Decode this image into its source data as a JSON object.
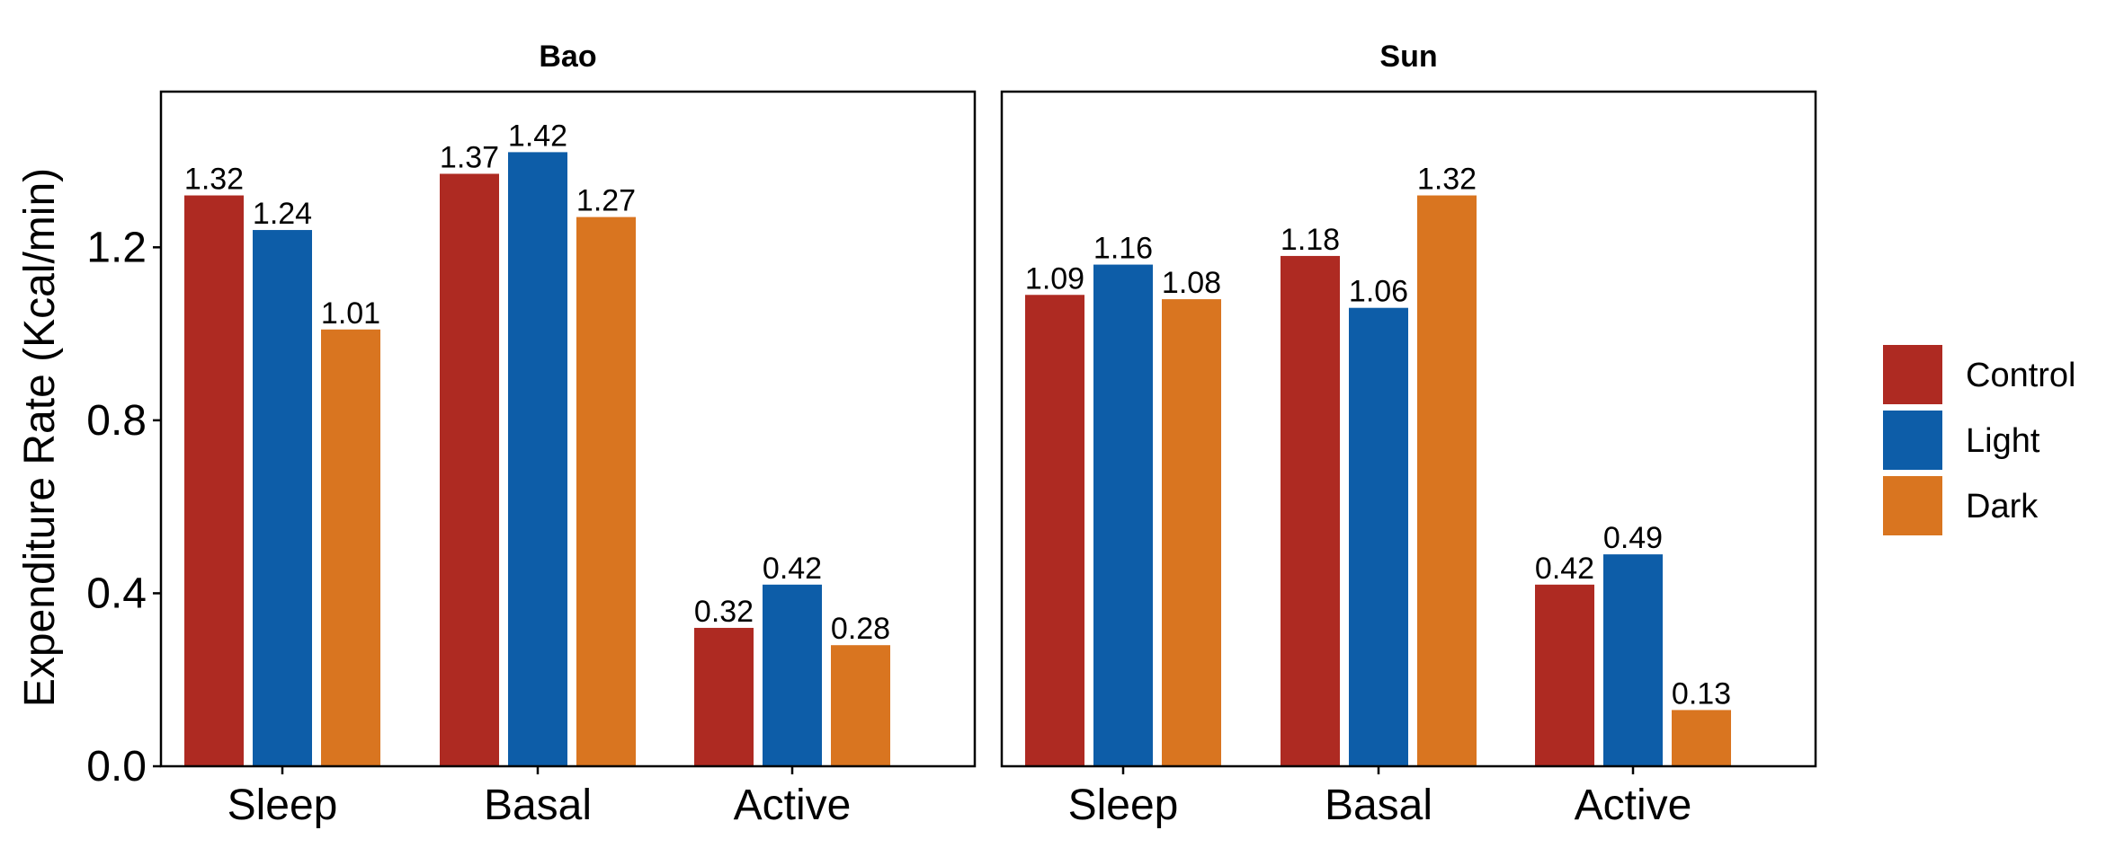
{
  "chart_data": {
    "type": "bar",
    "ylabel": "Expenditure Rate (Kcal/min)",
    "ylim": [
      0,
      1.56
    ],
    "yticks": [
      0.0,
      0.4,
      0.8,
      1.2
    ],
    "ytick_labels": [
      "0.0",
      "0.4",
      "0.8",
      "1.2"
    ],
    "grid": false,
    "legend_position": "right",
    "categories": [
      "Sleep",
      "Basal",
      "Active"
    ],
    "series_names": [
      "Control",
      "Light",
      "Dark"
    ],
    "colors": {
      "Control": "#AE2A22",
      "Light": "#0D5DA8",
      "Dark": "#D97520"
    },
    "panels": [
      {
        "title": "Bao",
        "series": [
          {
            "name": "Control",
            "values": [
              1.32,
              1.37,
              0.32
            ],
            "labels": [
              "1.32",
              "1.37",
              "0.32"
            ]
          },
          {
            "name": "Light",
            "values": [
              1.24,
              1.42,
              0.42
            ],
            "labels": [
              "1.24",
              "1.42",
              "0.42"
            ]
          },
          {
            "name": "Dark",
            "values": [
              1.01,
              1.27,
              0.28
            ],
            "labels": [
              "1.01",
              "1.27",
              "0.28"
            ]
          }
        ]
      },
      {
        "title": "Sun",
        "series": [
          {
            "name": "Control",
            "values": [
              1.09,
              1.18,
              0.42
            ],
            "labels": [
              "1.09",
              "1.18",
              "0.42"
            ]
          },
          {
            "name": "Light",
            "values": [
              1.16,
              1.06,
              0.49
            ],
            "labels": [
              "1.16",
              "1.06",
              "0.49"
            ]
          },
          {
            "name": "Dark",
            "values": [
              1.08,
              1.32,
              0.13
            ],
            "labels": [
              "1.08",
              "1.32",
              "0.13"
            ]
          }
        ]
      }
    ]
  }
}
